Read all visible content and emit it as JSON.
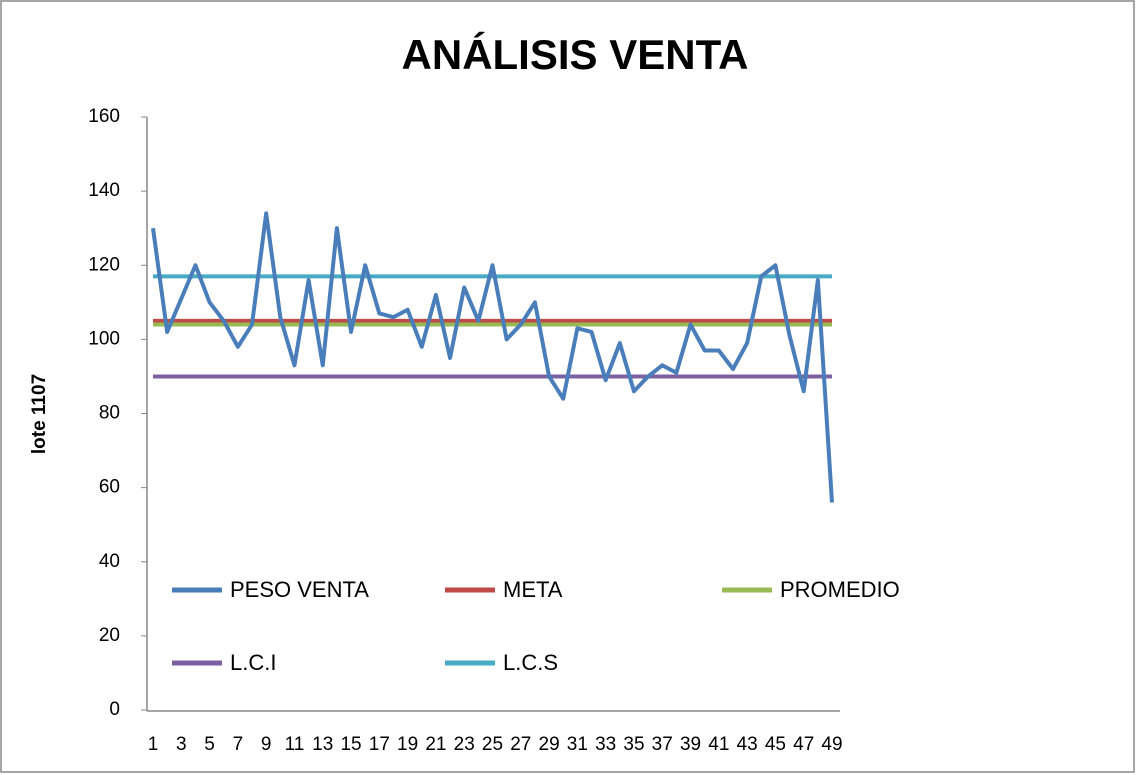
{
  "chart_data": {
    "type": "line",
    "title": "ANÁLISIS VENTA",
    "y_label": "lote 1107",
    "categories": [
      1,
      null,
      3,
      null,
      5,
      null,
      7,
      null,
      9,
      null,
      11,
      null,
      13,
      null,
      15,
      null,
      17,
      null,
      19,
      null,
      21,
      null,
      23,
      null,
      25,
      null,
      27,
      null,
      29,
      null,
      31,
      null,
      33,
      null,
      35,
      null,
      37,
      null,
      39,
      null,
      41,
      null,
      43,
      null,
      45,
      null,
      47,
      null,
      49
    ],
    "series": [
      {
        "name": "PESO VENTA",
        "color": "#4a7ebb",
        "values": [
          130,
          102,
          111,
          120,
          110,
          105,
          98,
          104,
          134,
          106,
          93,
          116,
          93,
          130,
          102,
          120,
          107,
          106,
          108,
          98,
          112,
          95,
          114,
          105,
          120,
          100,
          104,
          110,
          90,
          84,
          103,
          102,
          89,
          99,
          86,
          90,
          93,
          91,
          104,
          97,
          97,
          92,
          99,
          117,
          120,
          101,
          86,
          116,
          56
        ]
      },
      {
        "name": "META",
        "color": "#be4b48",
        "values": [
          105,
          105,
          105,
          105,
          105,
          105,
          105,
          105,
          105,
          105,
          105,
          105,
          105,
          105,
          105,
          105,
          105,
          105,
          105,
          105,
          105,
          105,
          105,
          105,
          105,
          105,
          105,
          105,
          105,
          105,
          105,
          105,
          105,
          105,
          105,
          105,
          105,
          105,
          105,
          105,
          105,
          105,
          105,
          105,
          105,
          105,
          105,
          105,
          105
        ]
      },
      {
        "name": "PROMEDIO",
        "color": "#98b954",
        "values": [
          104,
          104,
          104,
          104,
          104,
          104,
          104,
          104,
          104,
          104,
          104,
          104,
          104,
          104,
          104,
          104,
          104,
          104,
          104,
          104,
          104,
          104,
          104,
          104,
          104,
          104,
          104,
          104,
          104,
          104,
          104,
          104,
          104,
          104,
          104,
          104,
          104,
          104,
          104,
          104,
          104,
          104,
          104,
          104,
          104,
          104,
          104,
          104,
          104
        ]
      },
      {
        "name": "L.C.I",
        "color": "#7d60a0",
        "values": [
          90,
          90,
          90,
          90,
          90,
          90,
          90,
          90,
          90,
          90,
          90,
          90,
          90,
          90,
          90,
          90,
          90,
          90,
          90,
          90,
          90,
          90,
          90,
          90,
          90,
          90,
          90,
          90,
          90,
          90,
          90,
          90,
          90,
          90,
          90,
          90,
          90,
          90,
          90,
          90,
          90,
          90,
          90,
          90,
          90,
          90,
          90,
          90,
          90
        ]
      },
      {
        "name": "L.C.S",
        "color": "#46aac5",
        "values": [
          117,
          117,
          117,
          117,
          117,
          117,
          117,
          117,
          117,
          117,
          117,
          117,
          117,
          117,
          117,
          117,
          117,
          117,
          117,
          117,
          117,
          117,
          117,
          117,
          117,
          117,
          117,
          117,
          117,
          117,
          117,
          117,
          117,
          117,
          117,
          117,
          117,
          117,
          117,
          117,
          117,
          117,
          117,
          117,
          117,
          117,
          117,
          117,
          117
        ]
      }
    ],
    "ylim": [
      0,
      160
    ],
    "yticks": [
      0,
      20,
      40,
      60,
      80,
      100,
      120,
      140,
      160
    ]
  }
}
